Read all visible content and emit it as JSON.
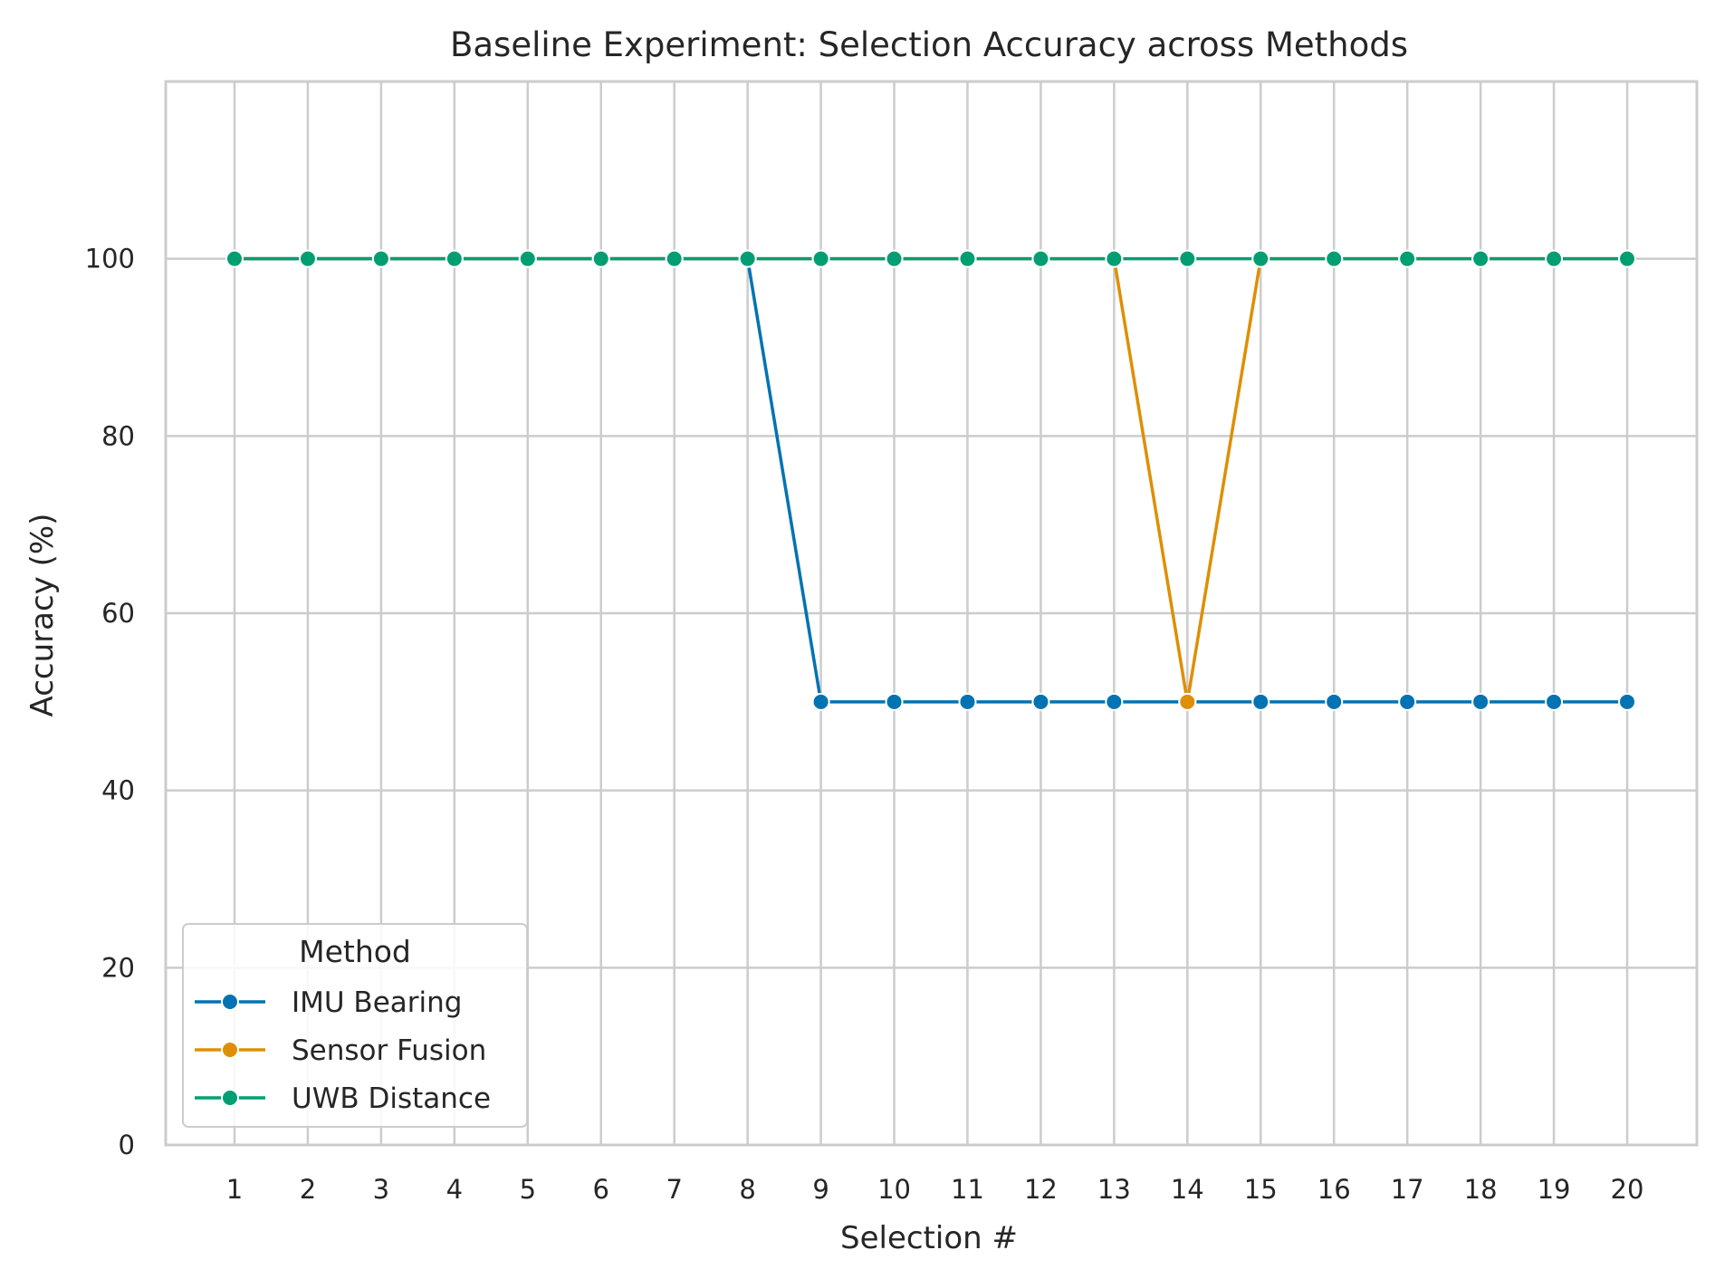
{
  "chart_data": {
    "type": "line",
    "title": "Baseline Experiment: Selection Accuracy across Methods",
    "xlabel": "Selection #",
    "ylabel": "Accuracy (%)",
    "categories": [
      "1",
      "2",
      "3",
      "4",
      "5",
      "6",
      "7",
      "8",
      "9",
      "10",
      "11",
      "12",
      "13",
      "14",
      "15",
      "16",
      "17",
      "18",
      "19",
      "20"
    ],
    "yticks": [
      "0",
      "20",
      "40",
      "60",
      "80",
      "100"
    ],
    "ylim": [
      0,
      120
    ],
    "grid": true,
    "legend": {
      "title": "Method",
      "placement": "lower-left"
    },
    "series": [
      {
        "name": "IMU Bearing",
        "color": "#0173b2",
        "values": [
          100,
          100,
          100,
          100,
          100,
          100,
          100,
          100,
          50,
          50,
          50,
          50,
          50,
          50,
          50,
          50,
          50,
          50,
          50,
          50
        ]
      },
      {
        "name": "Sensor Fusion",
        "color": "#de8f05",
        "values": [
          100,
          100,
          100,
          100,
          100,
          100,
          100,
          100,
          100,
          100,
          100,
          100,
          100,
          50,
          100,
          100,
          100,
          100,
          100,
          100
        ]
      },
      {
        "name": "UWB Distance",
        "color": "#029e73",
        "values": [
          100,
          100,
          100,
          100,
          100,
          100,
          100,
          100,
          100,
          100,
          100,
          100,
          100,
          100,
          100,
          100,
          100,
          100,
          100,
          100
        ]
      }
    ]
  }
}
